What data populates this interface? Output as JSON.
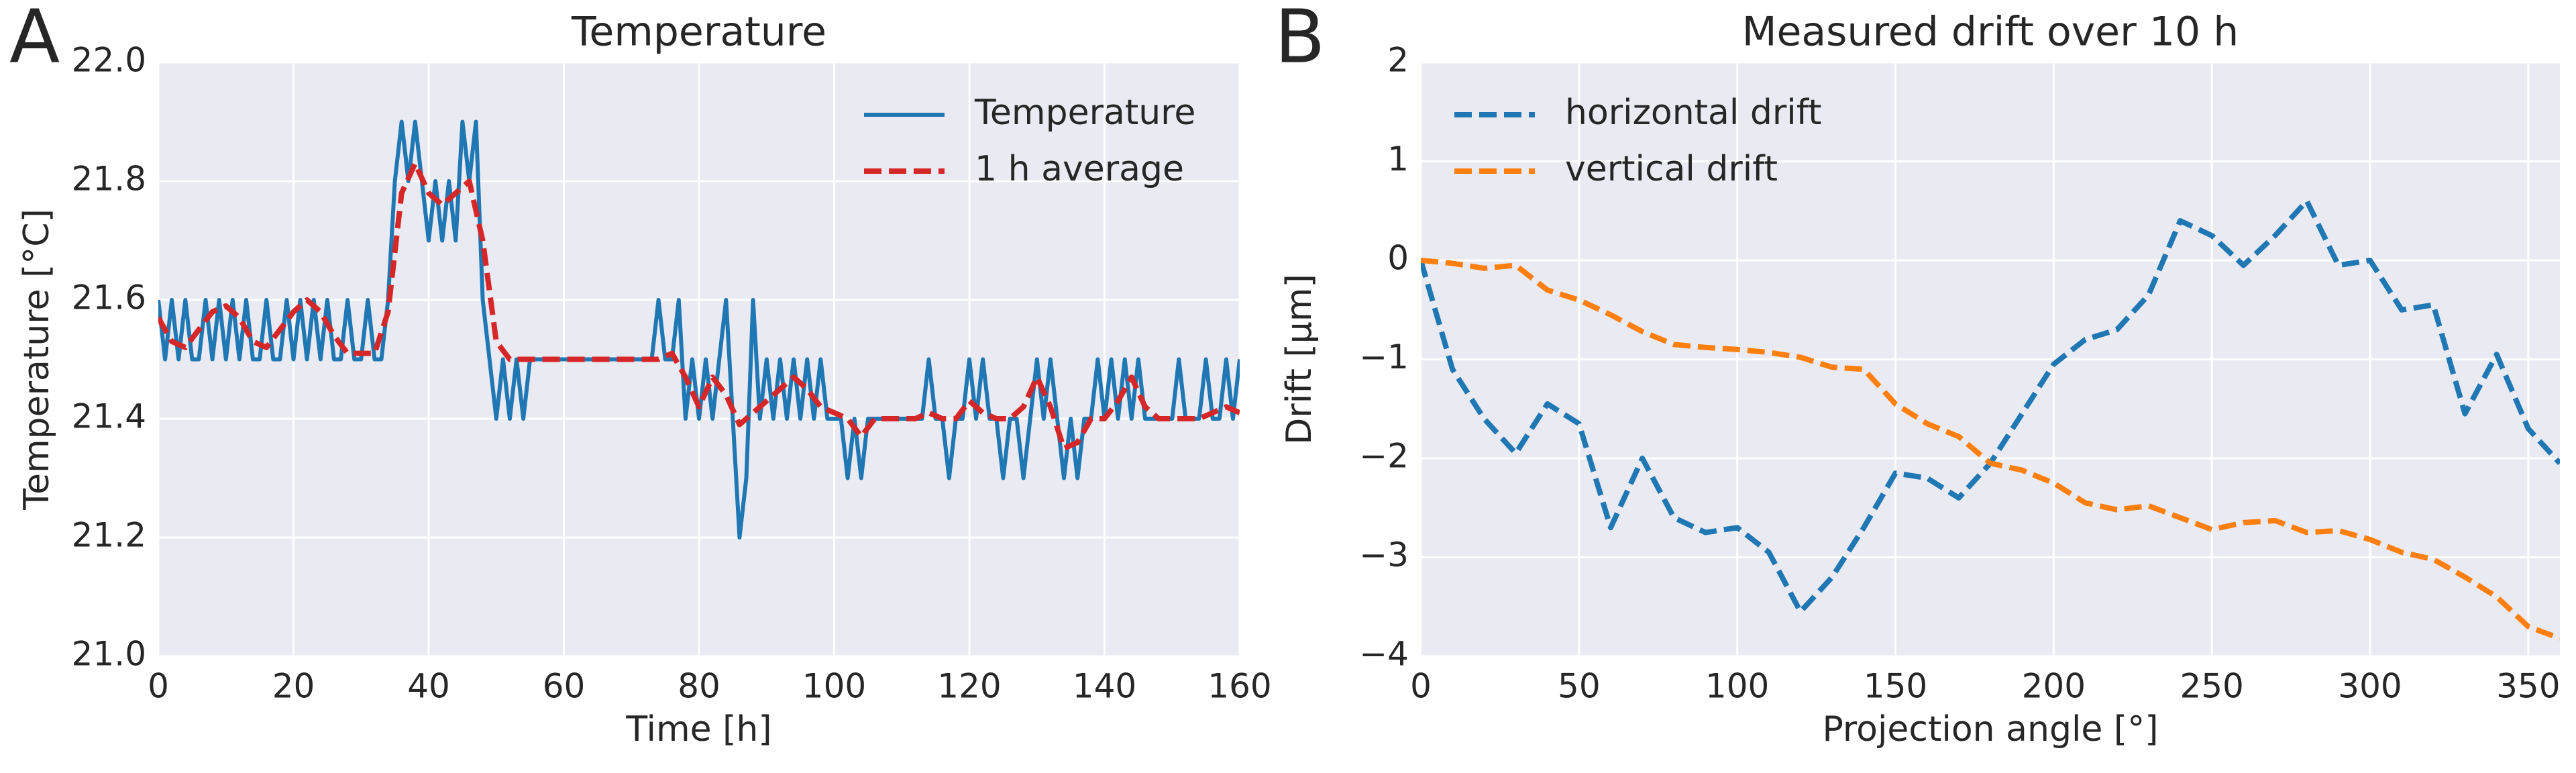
{
  "chart_data": [
    {
      "type": "line",
      "panel_label": "A",
      "title": "Temperature",
      "xlabel": "Time [h]",
      "ylabel": "Temperature [°C]",
      "xlim": [
        0,
        160
      ],
      "xticks": [
        0,
        20,
        40,
        60,
        80,
        100,
        120,
        140,
        160
      ],
      "ylim": [
        21.0,
        22.0
      ],
      "yticks": [
        {
          "value": 21.0,
          "label": "21.0"
        },
        21.2,
        21.4,
        21.6,
        21.8,
        {
          "value": 22.0,
          "label": "22.0"
        }
      ],
      "grid": true,
      "legend": "upper right",
      "series": [
        {
          "name": "Temperature",
          "color": "#1f77b4",
          "linestyle": "solid",
          "x": [
            0,
            1,
            2,
            3,
            4,
            5,
            6,
            7,
            8,
            9,
            10,
            11,
            12,
            13,
            14,
            15,
            16,
            17,
            18,
            19,
            20,
            21,
            22,
            23,
            24,
            25,
            26,
            27,
            28,
            29,
            30,
            31,
            32,
            33,
            34,
            35,
            36,
            37,
            38,
            39,
            40,
            41,
            42,
            43,
            44,
            45,
            46,
            47,
            48,
            49,
            50,
            51,
            52,
            53,
            54,
            55,
            56,
            57,
            58,
            59,
            60,
            61,
            62,
            63,
            64,
            65,
            66,
            67,
            68,
            69,
            70,
            71,
            72,
            73,
            74,
            75,
            76,
            77,
            78,
            79,
            80,
            81,
            82,
            83,
            84,
            85,
            86,
            87,
            88,
            89,
            90,
            91,
            92,
            93,
            94,
            95,
            96,
            97,
            98,
            99,
            100,
            101,
            102,
            103,
            104,
            105,
            106,
            107,
            108,
            109,
            110,
            111,
            112,
            113,
            114,
            115,
            116,
            117,
            118,
            119,
            120,
            121,
            122,
            123,
            124,
            125,
            126,
            127,
            128,
            129,
            130,
            131,
            132,
            133,
            134,
            135,
            136,
            137,
            138,
            139,
            140,
            141,
            142,
            143,
            144,
            145,
            146,
            147,
            148,
            149,
            150,
            151,
            152,
            153,
            154,
            155,
            156,
            157,
            158,
            159,
            160
          ],
          "values": [
            21.6,
            21.5,
            21.6,
            21.5,
            21.6,
            21.5,
            21.5,
            21.6,
            21.5,
            21.6,
            21.5,
            21.6,
            21.5,
            21.6,
            21.5,
            21.5,
            21.6,
            21.5,
            21.5,
            21.6,
            21.5,
            21.6,
            21.5,
            21.6,
            21.5,
            21.6,
            21.5,
            21.5,
            21.6,
            21.5,
            21.5,
            21.6,
            21.5,
            21.5,
            21.6,
            21.8,
            21.9,
            21.8,
            21.9,
            21.8,
            21.7,
            21.8,
            21.7,
            21.8,
            21.7,
            21.9,
            21.8,
            21.9,
            21.6,
            21.5,
            21.4,
            21.5,
            21.4,
            21.5,
            21.4,
            21.5,
            21.5,
            21.5,
            21.5,
            21.5,
            21.5,
            21.5,
            21.5,
            21.5,
            21.5,
            21.5,
            21.5,
            21.5,
            21.5,
            21.5,
            21.5,
            21.5,
            21.5,
            21.5,
            21.6,
            21.5,
            21.5,
            21.6,
            21.4,
            21.5,
            21.4,
            21.5,
            21.4,
            21.5,
            21.6,
            21.4,
            21.2,
            21.3,
            21.6,
            21.4,
            21.5,
            21.4,
            21.5,
            21.4,
            21.5,
            21.4,
            21.5,
            21.4,
            21.5,
            21.4,
            21.4,
            21.4,
            21.3,
            21.4,
            21.3,
            21.4,
            21.4,
            21.4,
            21.4,
            21.4,
            21.4,
            21.4,
            21.4,
            21.4,
            21.5,
            21.4,
            21.4,
            21.3,
            21.4,
            21.4,
            21.5,
            21.4,
            21.5,
            21.4,
            21.4,
            21.3,
            21.4,
            21.4,
            21.3,
            21.4,
            21.5,
            21.4,
            21.5,
            21.4,
            21.3,
            21.4,
            21.3,
            21.4,
            21.4,
            21.5,
            21.4,
            21.5,
            21.4,
            21.5,
            21.4,
            21.5,
            21.4,
            21.4,
            21.4,
            21.4,
            21.4,
            21.5,
            21.4,
            21.4,
            21.4,
            21.5,
            21.4,
            21.4,
            21.5,
            21.4,
            21.5
          ]
        },
        {
          "name": "1 h average",
          "color": "#d62728",
          "linestyle": "dashed",
          "x": [
            0,
            2,
            4,
            6,
            8,
            10,
            12,
            14,
            16,
            18,
            20,
            22,
            24,
            26,
            28,
            30,
            32,
            34,
            36,
            38,
            40,
            42,
            44,
            46,
            48,
            50,
            52,
            54,
            56,
            58,
            60,
            62,
            64,
            66,
            68,
            70,
            72,
            74,
            76,
            78,
            80,
            82,
            84,
            86,
            88,
            90,
            92,
            94,
            96,
            98,
            100,
            102,
            104,
            106,
            108,
            110,
            112,
            114,
            116,
            118,
            120,
            122,
            124,
            126,
            128,
            130,
            132,
            134,
            136,
            138,
            140,
            142,
            144,
            146,
            148,
            150,
            152,
            154,
            156,
            158,
            160
          ],
          "values": [
            21.57,
            21.53,
            21.52,
            21.55,
            21.58,
            21.59,
            21.57,
            21.53,
            21.52,
            21.55,
            21.58,
            21.6,
            21.58,
            21.54,
            21.51,
            21.51,
            21.51,
            21.58,
            21.78,
            21.83,
            21.78,
            21.76,
            21.78,
            21.8,
            21.7,
            21.53,
            21.5,
            21.5,
            21.5,
            21.5,
            21.5,
            21.5,
            21.5,
            21.5,
            21.5,
            21.5,
            21.5,
            21.5,
            21.51,
            21.47,
            21.42,
            21.47,
            21.44,
            21.39,
            21.41,
            21.43,
            21.45,
            21.47,
            21.45,
            21.42,
            21.41,
            21.4,
            21.37,
            21.4,
            21.4,
            21.4,
            21.4,
            21.41,
            21.4,
            21.4,
            21.43,
            21.41,
            21.4,
            21.4,
            21.42,
            21.47,
            21.42,
            21.35,
            21.36,
            21.4,
            21.4,
            21.43,
            21.47,
            21.42,
            21.4,
            21.4,
            21.4,
            21.4,
            21.41,
            21.42,
            21.41
          ]
        }
      ]
    },
    {
      "type": "line",
      "panel_label": "B",
      "title": "Measured drift over 10 h",
      "xlabel": "Projection angle [°]",
      "ylabel": "Drift [µm]",
      "xlim": [
        0,
        360
      ],
      "xticks": [
        0,
        50,
        100,
        150,
        200,
        250,
        300,
        350
      ],
      "ylim": [
        -4,
        2
      ],
      "yticks": [
        {
          "value": -4,
          "label": "−4"
        },
        {
          "value": -3,
          "label": "−3"
        },
        {
          "value": -2,
          "label": "−2"
        },
        {
          "value": -1,
          "label": "−1"
        },
        0,
        1,
        2
      ],
      "grid": true,
      "legend": "upper left",
      "series": [
        {
          "name": "horizontal drift",
          "color": "#1f77b4",
          "linestyle": "dashed",
          "x": [
            0,
            10,
            20,
            30,
            40,
            50,
            60,
            70,
            80,
            90,
            100,
            110,
            120,
            130,
            140,
            150,
            160,
            170,
            180,
            190,
            200,
            210,
            220,
            230,
            240,
            250,
            260,
            270,
            280,
            290,
            300,
            310,
            320,
            330,
            340,
            350,
            360
          ],
          "values": [
            0,
            -1.1,
            -1.6,
            -1.95,
            -1.45,
            -1.65,
            -2.7,
            -2.0,
            -2.6,
            -2.75,
            -2.7,
            -2.95,
            -3.55,
            -3.2,
            -2.7,
            -2.15,
            -2.2,
            -2.4,
            -2.05,
            -1.55,
            -1.05,
            -0.8,
            -0.7,
            -0.35,
            0.4,
            0.25,
            -0.05,
            0.25,
            0.6,
            -0.05,
            0,
            -0.5,
            -0.45,
            -1.55,
            -0.95,
            -1.7,
            -2.05
          ]
        },
        {
          "name": "vertical drift",
          "color": "#ff7f0e",
          "linestyle": "dashed",
          "x": [
            0,
            10,
            20,
            30,
            40,
            50,
            60,
            70,
            80,
            90,
            100,
            110,
            120,
            130,
            140,
            150,
            160,
            170,
            180,
            190,
            200,
            210,
            220,
            230,
            240,
            250,
            260,
            270,
            280,
            290,
            300,
            310,
            320,
            330,
            340,
            350,
            360
          ],
          "values": [
            0,
            -0.03,
            -0.08,
            -0.05,
            -0.3,
            -0.4,
            -0.55,
            -0.72,
            -0.85,
            -0.88,
            -0.9,
            -0.93,
            -0.98,
            -1.08,
            -1.1,
            -1.45,
            -1.65,
            -1.78,
            -2.05,
            -2.12,
            -2.25,
            -2.45,
            -2.52,
            -2.48,
            -2.6,
            -2.72,
            -2.65,
            -2.63,
            -2.75,
            -2.73,
            -2.82,
            -2.95,
            -3.02,
            -3.2,
            -3.4,
            -3.7,
            -3.82
          ]
        }
      ]
    }
  ]
}
